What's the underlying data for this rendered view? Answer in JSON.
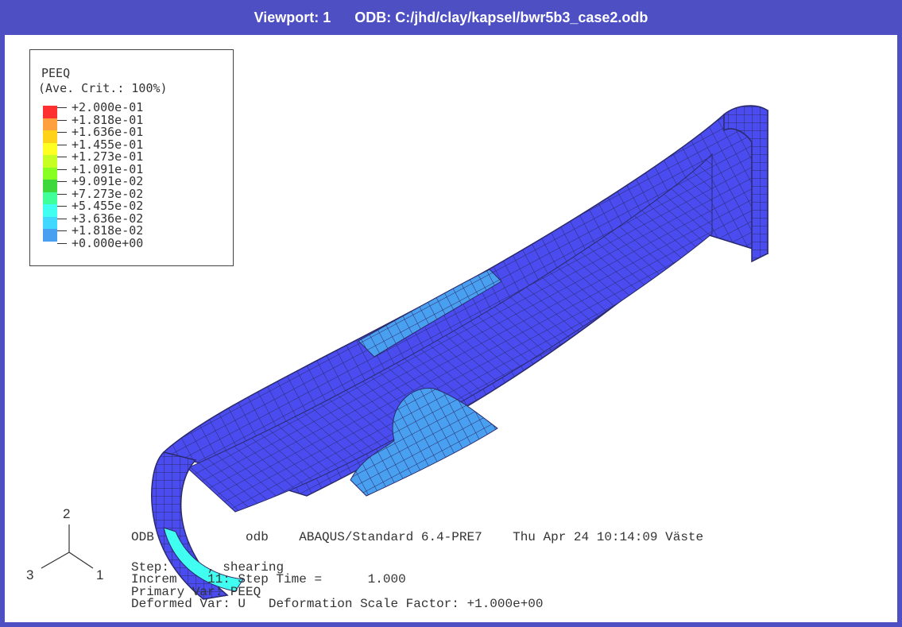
{
  "titlebar": {
    "viewport": "Viewport: 1",
    "odb": "ODB: C:/jhd/clay/kapsel/bwr5b3_case2.odb"
  },
  "legend": {
    "title": "PEEQ",
    "subtitle": "(Ave. Crit.: 100%)",
    "levels": [
      "+2.000e-01",
      "+1.818e-01",
      "+1.636e-01",
      "+1.455e-01",
      "+1.273e-01",
      "+1.091e-01",
      "+9.091e-02",
      "+7.273e-02",
      "+5.455e-02",
      "+3.636e-02",
      "+1.818e-02",
      "+0.000e+00"
    ],
    "colors": [
      "#ff3030",
      "#ffa040",
      "#ffd21a",
      "#ffff22",
      "#c8ff22",
      "#88ff22",
      "#3cd83c",
      "#40ff9a",
      "#40fff0",
      "#40d8ff",
      "#4aa0f0",
      "#4a4cf0"
    ]
  },
  "info": {
    "line1a": "ODB",
    "line1b": "odb",
    "line1c": "ABAQUS/Standard 6.4-PRE7",
    "line1d": "Thu Apr 24 10:14:09 Väste",
    "line2a": "Step:",
    "line2b": ", shearing",
    "line3a": "Increm",
    "line3b": "11: Step Time =",
    "line3c": "1.000",
    "line4": "Primary Var: PEEQ",
    "line5a": "Deformed Var: U",
    "line5b": "Deformation Scale Factor: +1.000e+00"
  },
  "triad": {
    "axis_x": "1",
    "axis_y": "2",
    "axis_z": "3"
  },
  "colors": {
    "titlebar": "#4d4fc3",
    "mesh_base": "#4a4cf0",
    "mesh_light": "#4aa0f0",
    "mesh_cyan": "#40fff0",
    "mesh_line": "#2a2a6a"
  }
}
